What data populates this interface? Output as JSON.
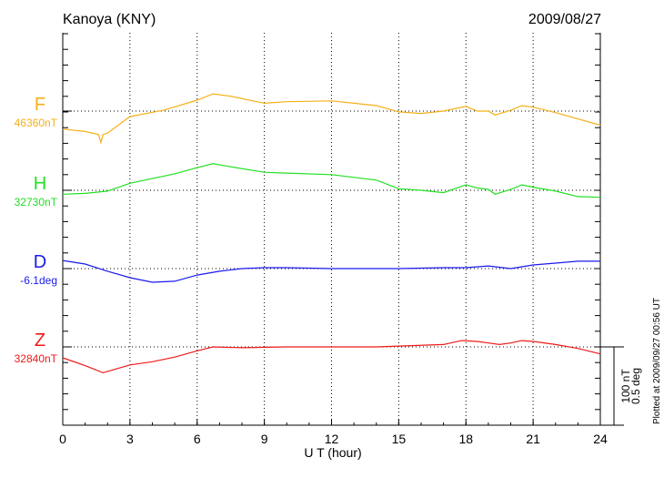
{
  "chart_data": {
    "type": "line",
    "title": "Kanoya (KNY)",
    "date": "2009/08/27",
    "xlabel": "U T (hour)",
    "xlim": [
      0,
      24
    ],
    "xticks": [
      0,
      3,
      6,
      9,
      12,
      15,
      18,
      21,
      24
    ],
    "grid": true,
    "scale_bar": {
      "nT_label": "100 nT",
      "deg_label": "0.5 deg",
      "nT": 100,
      "deg": 0.5
    },
    "plotted_note": "Plotted at 2009/09/27 00:56 UT",
    "series": [
      {
        "name": "F",
        "baseline_label": "46360nT",
        "unit": "nT",
        "color": "#f5b018",
        "x": [
          0,
          1,
          1.6,
          1.7,
          1.8,
          2,
          3,
          4.5,
          6,
          6.7,
          7.5,
          9,
          10,
          12,
          14,
          15,
          16,
          17,
          18,
          18.5,
          19,
          19.3,
          20,
          20.5,
          21,
          22,
          23,
          24
        ],
        "y": [
          -23,
          -26,
          -30,
          -40,
          -30,
          -28,
          -7,
          1,
          14,
          22,
          19,
          10,
          12,
          13,
          7,
          -1,
          -3,
          0,
          6,
          0,
          0,
          -5,
          1,
          7,
          5,
          -2,
          -10,
          -18
        ]
      },
      {
        "name": "H",
        "baseline_label": "32730nT",
        "unit": "nT",
        "color": "#22e022",
        "x": [
          0,
          1,
          2,
          3,
          4,
          5,
          6,
          6.7,
          7.5,
          9,
          10,
          12,
          14,
          15,
          16,
          17,
          18,
          18.5,
          19,
          19.3,
          20,
          20.5,
          21,
          22,
          23,
          24
        ],
        "y": [
          -5,
          -4,
          -1,
          9,
          15,
          21,
          29,
          34,
          30,
          23,
          22,
          20,
          13,
          2,
          0,
          -3,
          7,
          3,
          1,
          -5,
          1,
          7,
          4,
          -1,
          -8,
          -9
        ]
      },
      {
        "name": "D",
        "baseline_label": "-6.1deg",
        "unit": "deg",
        "color": "#1a1aee",
        "x": [
          0,
          1,
          2,
          3,
          4,
          5,
          6,
          7,
          8,
          9,
          10,
          12,
          15,
          17,
          18,
          19,
          20,
          21,
          22,
          23,
          24
        ],
        "y": [
          0.052,
          0.029,
          -0.017,
          -0.058,
          -0.087,
          -0.081,
          -0.041,
          -0.017,
          0,
          0.006,
          0.006,
          0,
          0,
          0.006,
          0.006,
          0.017,
          0,
          0.023,
          0.035,
          0.047,
          0.047
        ]
      },
      {
        "name": "Z",
        "baseline_label": "32840nT",
        "unit": "nT",
        "color": "#ee1a1a",
        "x": [
          0,
          1,
          1.8,
          3,
          4,
          5,
          6,
          6.7,
          8,
          10,
          12,
          14,
          15,
          17,
          17.8,
          18.5,
          19,
          19.5,
          20,
          20.5,
          21,
          22,
          23,
          24
        ],
        "y": [
          -14,
          -24,
          -33,
          -23,
          -19,
          -13,
          -5,
          0,
          -1,
          0,
          0,
          0,
          1,
          3,
          8,
          7,
          5,
          3,
          5,
          8,
          7,
          3,
          -2,
          -9
        ]
      }
    ]
  }
}
